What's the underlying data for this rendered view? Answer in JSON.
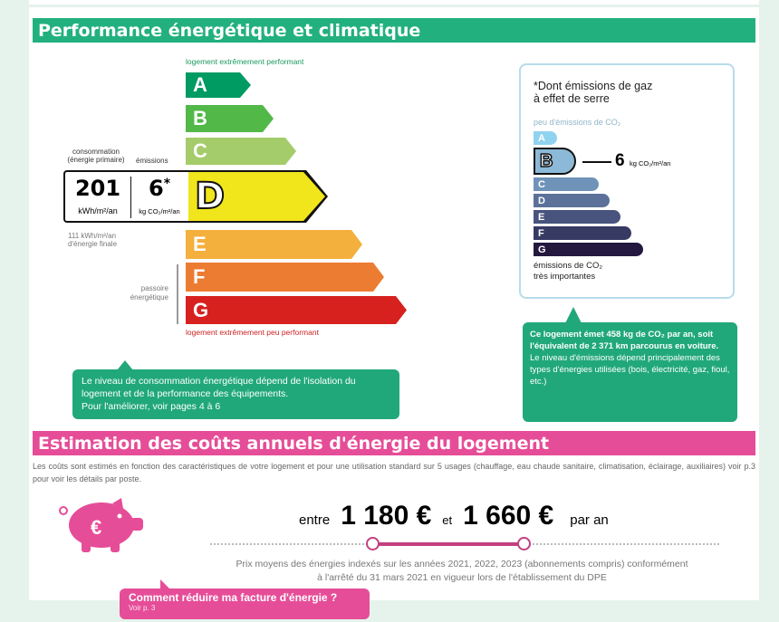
{
  "colors": {
    "green": "#22b07f",
    "pink": "#e64d98",
    "A": "#009a63",
    "B": "#52b848",
    "C": "#a4cc6a",
    "D": "#f1e51c",
    "E": "#f4b03c",
    "F": "#ec7c32",
    "G": "#d6211f"
  },
  "performance": {
    "title": "Performance énergétique et climatique",
    "top_label": "logement extrêmement performant",
    "bottom_label": "logement extrêmement peu performant",
    "classes": [
      "A",
      "B",
      "C",
      "D",
      "E",
      "F",
      "G"
    ],
    "current_class": "D",
    "consumption_label": "consommation\n(énergie primaire)",
    "emissions_label": "émissions",
    "consumption_value": "201",
    "consumption_unit": "kWh/m²/an",
    "emissions_value": "6",
    "emissions_star": "*",
    "emissions_unit": "kg CO₂/m²/an",
    "final_energy": "111 kWh/m²/an\nd'énergie finale",
    "passoire": "passoire\nénergétique"
  },
  "ges": {
    "title": "*Dont émissions de gaz\nà effet de serre",
    "top_label": "peu d'émissions de CO₂",
    "bottom_label": "émissions de CO₂\ntrès importantes",
    "classes": [
      "A",
      "B",
      "C",
      "D",
      "E",
      "F",
      "G"
    ],
    "current_class": "B",
    "value": "6",
    "unit": "kg CO₂/m²/an"
  },
  "callouts": {
    "left": "Le niveau de consommation énergétique dépend de l'isolation du logement et de la performance des équipements.\nPour l'améliorer, voir pages 4 à 6",
    "right_bold": "Ce logement émet 458 kg de CO₂ par an, soit l'équivalent de 2 371 km parcourus en voiture.",
    "right": "Le niveau d'émissions dépend principalement des types d'énergies utilisées (bois, électricité, gaz, fioul, etc.)"
  },
  "costs": {
    "title": "Estimation des coûts annuels d'énergie du logement",
    "description": "Les coûts sont estimés en fonction des caractéristiques de votre logement et pour une utilisation standard sur 5 usages (chauffage, eau chaude sanitaire, climatisation, éclairage, auxiliaires) voir p.3 pour voir les détails par poste.",
    "between": "entre",
    "min": "1 180 €",
    "and": "et",
    "max": "1 660 €",
    "per_year": "par an",
    "note": "Prix moyens des énergies indexés sur les années 2021, 2022, 2023 (abonnements compris) conformément\nà l'arrêté du 31 mars 2021 en vigueur lors de l'établissement du DPE",
    "reduce_title": "Comment réduire ma facture d'énergie ?",
    "reduce_sub": "Voir p. 3"
  }
}
